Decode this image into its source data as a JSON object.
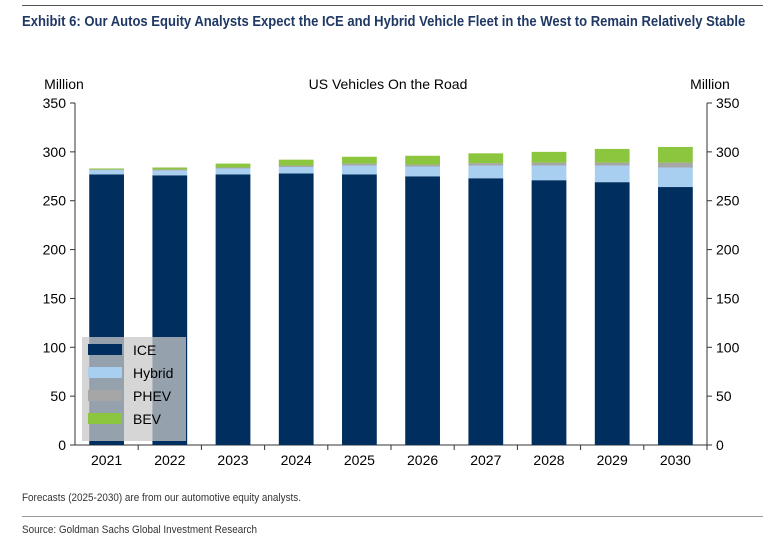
{
  "title": "Exhibit 6: Our Autos Equity Analysts Expect the ICE and Hybrid Vehicle Fleet in the West to Remain Relatively Stable",
  "footnote": "Forecasts (2025-2030) are from our automotive equity analysts.",
  "source": "Source: Goldman Sachs Global Investment Research",
  "chart_data": {
    "type": "bar",
    "stacked": true,
    "title": "US Vehicles On the Road",
    "ylabel": "Million",
    "ylabel_right": "Million",
    "ylim": [
      0,
      350
    ],
    "yticks": [
      0,
      50,
      100,
      150,
      200,
      250,
      300,
      350
    ],
    "categories": [
      "2021",
      "2022",
      "2023",
      "2024",
      "2025",
      "2026",
      "2027",
      "2028",
      "2029",
      "2030"
    ],
    "legend_position": "bottom-left",
    "series": [
      {
        "name": "ICE",
        "color": "#002f5f",
        "values": [
          277,
          276,
          277,
          278,
          277,
          275,
          273,
          271,
          269,
          264
        ]
      },
      {
        "name": "Hybrid",
        "color": "#a9cff0",
        "values": [
          4.5,
          5,
          6,
          6.5,
          9,
          10,
          13,
          15,
          17,
          20
        ]
      },
      {
        "name": "PHEV",
        "color": "#a6a6a6",
        "values": [
          0.5,
          1,
          1,
          1.5,
          2,
          2,
          2.5,
          3,
          3,
          5
        ]
      },
      {
        "name": "BEV",
        "color": "#8cc63f",
        "values": [
          1,
          2,
          4,
          6,
          7,
          9,
          10,
          11,
          14,
          16
        ]
      }
    ]
  }
}
